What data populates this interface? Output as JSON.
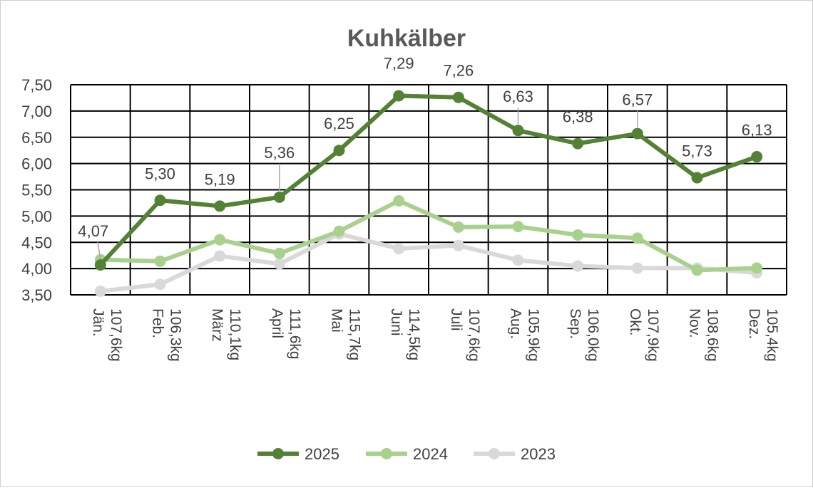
{
  "chart_data": {
    "type": "line",
    "title": "Kuhkälber",
    "categories": [
      "Jän. 107,6kg",
      "Feb. 106,3kg",
      "März 110,1kg",
      "April 111,6kg",
      "Mai 115,7kg",
      "Juni 114,5kg",
      "Juli 107,6kg",
      "Aug. 105,9kg",
      "Sep. 106,0kg",
      "Okt. 107,9kg",
      "Nov. 108,6kg",
      "Dez. 105,4kg"
    ],
    "ylim": [
      3.5,
      7.5
    ],
    "yticks": [
      "3,50",
      "4,00",
      "4,50",
      "5,00",
      "5,50",
      "6,00",
      "6,50",
      "7,00",
      "7,50"
    ],
    "ytick_values": [
      3.5,
      4.0,
      4.5,
      5.0,
      5.5,
      6.0,
      6.5,
      7.0,
      7.5
    ],
    "grid": true,
    "legend_position": "bottom",
    "series": [
      {
        "name": "2025",
        "color": "#548235",
        "values": [
          4.07,
          5.3,
          5.19,
          5.36,
          6.25,
          7.29,
          7.26,
          6.63,
          6.38,
          6.57,
          5.73,
          6.13
        ],
        "labels": [
          "4,07",
          "5,30",
          "5,19",
          "5,36",
          "6,25",
          "7,29",
          "7,26",
          "6,63",
          "6,38",
          "6,57",
          "5,73",
          "6,13"
        ]
      },
      {
        "name": "2024",
        "color": "#a9d18e",
        "values": [
          4.17,
          4.14,
          4.55,
          4.29,
          4.71,
          5.29,
          4.79,
          4.8,
          4.64,
          4.58,
          3.97,
          4.01
        ]
      },
      {
        "name": "2023",
        "color": "#d9d9d9",
        "values": [
          3.57,
          3.7,
          4.24,
          4.09,
          4.66,
          4.38,
          4.44,
          4.16,
          4.05,
          4.01,
          4.01,
          3.92
        ]
      }
    ]
  }
}
